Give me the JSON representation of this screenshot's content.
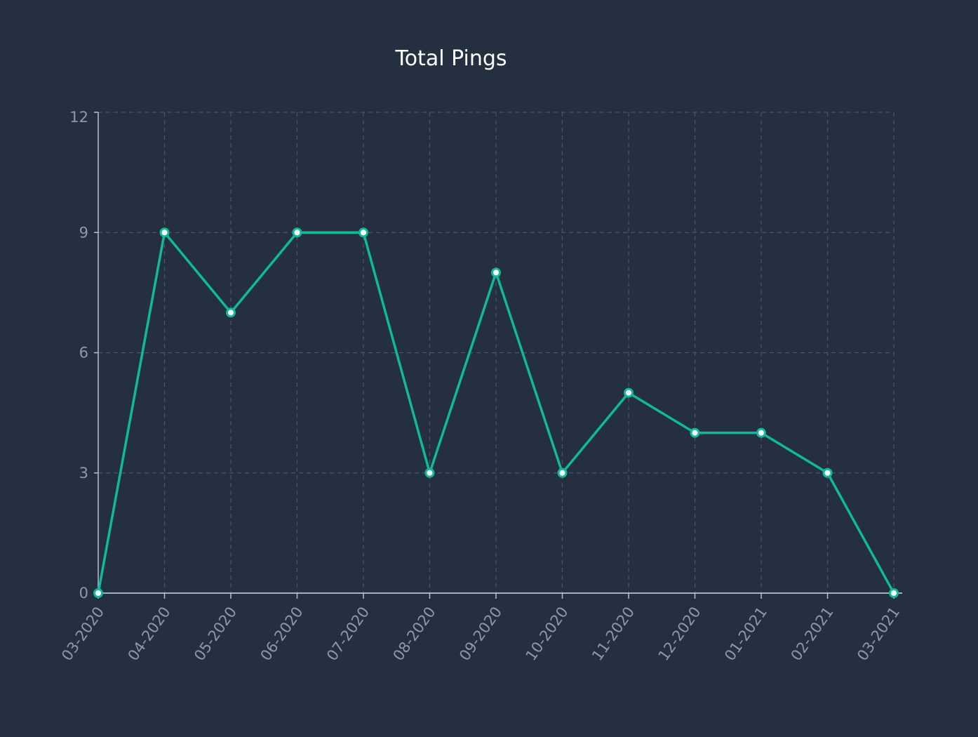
{
  "chart_data": {
    "type": "line",
    "title": "Total Pings",
    "xlabel": "",
    "ylabel": "",
    "categories": [
      "03-2020",
      "04-2020",
      "05-2020",
      "06-2020",
      "07-2020",
      "08-2020",
      "09-2020",
      "10-2020",
      "11-2020",
      "12-2020",
      "01-2021",
      "02-2021",
      "03-2021"
    ],
    "series": [
      {
        "values": [
          0,
          9,
          7,
          9,
          9,
          3,
          8,
          3,
          5,
          4,
          4,
          3,
          0
        ]
      }
    ],
    "ylim": [
      0,
      12
    ],
    "yticks": [
      0,
      3,
      6,
      9,
      12
    ],
    "grid": true,
    "legend": "none"
  },
  "colors": {
    "background": "#24303f",
    "line": "#10b99a",
    "marker_fill": "#ffffff",
    "grid": "#4b5563",
    "axis": "#b8c0cc",
    "tick_text": "#8e99a8",
    "title": "#ffffff"
  }
}
